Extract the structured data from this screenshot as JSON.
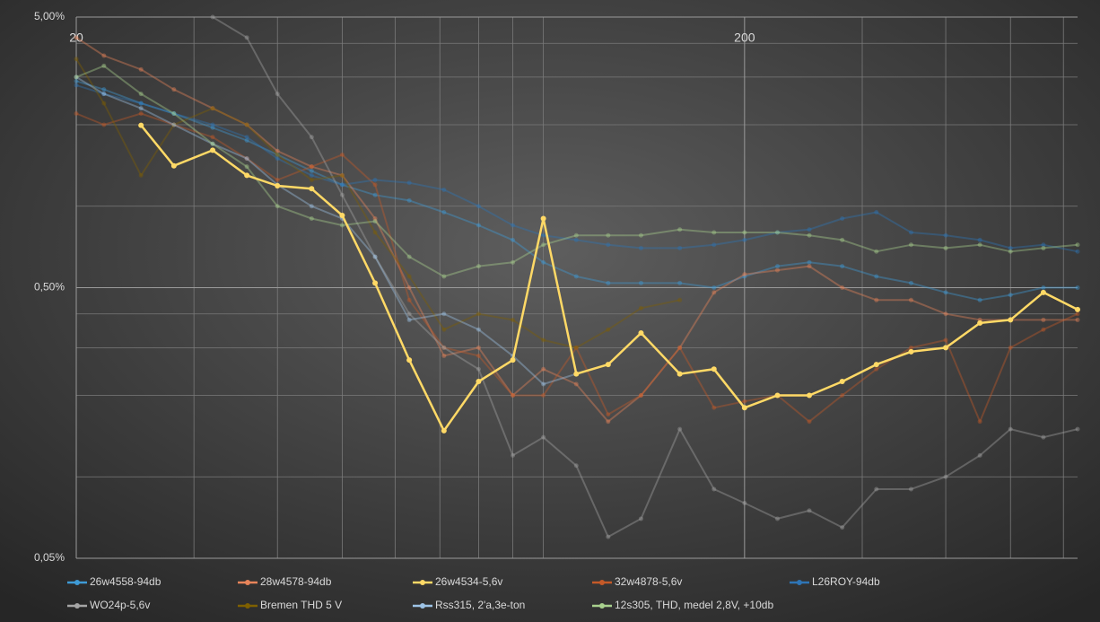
{
  "chart_data": {
    "type": "line",
    "xscale": "log",
    "yscale": "log",
    "grid": true,
    "legend": "bottom",
    "xlim": [
      20,
      630
    ],
    "xticks": [
      20,
      200
    ],
    "x_minor_gridlines": [
      30,
      40,
      50,
      60,
      70,
      80,
      90,
      100,
      300,
      400,
      500,
      600
    ],
    "ylim": [
      0.05,
      5
    ],
    "yticks": [
      {
        "value": 5,
        "label": "5,00%"
      },
      {
        "value": 0.5,
        "label": "0,50%"
      },
      {
        "value": 0.05,
        "label": "0,05%"
      }
    ],
    "y_minor_gridlines": [
      0.1,
      0.2,
      0.3,
      0.4,
      1,
      2,
      3,
      4
    ],
    "x": [
      20,
      22,
      25,
      28,
      32,
      36,
      40,
      45,
      50,
      56,
      63,
      71,
      80,
      90,
      100,
      112,
      125,
      140,
      160,
      180,
      200,
      224,
      250,
      280,
      315,
      355,
      400,
      450,
      500,
      560,
      630
    ],
    "series": [
      {
        "name": "26w4558-94db",
        "color": "#3e9bd6",
        "values": [
          2.9,
          2.7,
          2.4,
          2.2,
          1.95,
          1.75,
          1.55,
          1.35,
          1.2,
          1.1,
          1.05,
          0.95,
          0.85,
          0.75,
          0.62,
          0.55,
          0.52,
          0.52,
          0.52,
          0.5,
          0.55,
          0.6,
          0.62,
          0.6,
          0.55,
          0.52,
          0.48,
          0.45,
          0.47,
          0.5,
          0.5
        ]
      },
      {
        "name": "28w4578-94db",
        "color": "#e8845a",
        "values": [
          4.2,
          3.6,
          3.2,
          2.7,
          2.3,
          2.0,
          1.6,
          1.4,
          1.3,
          0.9,
          0.5,
          0.28,
          0.3,
          0.2,
          0.25,
          0.22,
          0.16,
          0.2,
          0.3,
          0.48,
          0.56,
          0.58,
          0.6,
          0.5,
          0.45,
          0.45,
          0.4,
          0.38,
          0.38,
          0.38,
          0.38
        ]
      },
      {
        "name": "26w4534-5,6v",
        "color": "#ffd966",
        "values": [
          null,
          null,
          1.99,
          1.41,
          1.61,
          1.3,
          1.19,
          1.16,
          0.925,
          0.52,
          0.27,
          0.148,
          0.225,
          0.27,
          0.9,
          0.24,
          0.26,
          0.34,
          0.24,
          0.25,
          0.18,
          0.2,
          0.2,
          0.225,
          0.26,
          0.29,
          0.3,
          0.37,
          0.38,
          0.48,
          0.415
        ]
      },
      {
        "name": "32w4878-5,6v",
        "color": "#c55a28",
        "values": [
          2.2,
          2.0,
          2.2,
          2.0,
          1.8,
          1.5,
          1.25,
          1.4,
          1.55,
          1.2,
          0.45,
          0.3,
          0.28,
          0.2,
          0.2,
          0.3,
          0.17,
          0.2,
          0.3,
          0.18,
          0.19,
          0.2,
          0.16,
          0.2,
          0.25,
          0.3,
          0.32,
          0.16,
          0.3,
          0.35,
          0.4
        ]
      },
      {
        "name": "L26ROY-94db",
        "color": "#2e75b6",
        "values": [
          2.8,
          2.6,
          2.4,
          2.2,
          2.0,
          1.8,
          1.5,
          1.3,
          1.2,
          1.25,
          1.22,
          1.15,
          1.0,
          0.85,
          0.78,
          0.75,
          0.72,
          0.7,
          0.7,
          0.72,
          0.75,
          0.8,
          0.82,
          0.9,
          0.95,
          0.8,
          0.78,
          0.75,
          0.7,
          0.72,
          0.68
        ]
      },
      {
        "name": "WO24p-5,6v",
        "color": "#a5a5a5",
        "values": [
          null,
          null,
          null,
          null,
          5.0,
          4.2,
          2.6,
          1.8,
          1.1,
          0.65,
          0.4,
          0.3,
          0.25,
          0.12,
          0.14,
          0.11,
          0.06,
          0.07,
          0.15,
          0.09,
          0.08,
          0.07,
          0.075,
          0.065,
          0.09,
          0.09,
          0.1,
          0.12,
          0.15,
          0.14,
          0.15
        ]
      },
      {
        "name": "Bremen THD 5 V",
        "color": "#7f6000",
        "values": [
          3.5,
          2.4,
          1.3,
          2.0,
          2.3,
          2.0,
          1.55,
          1.25,
          1.3,
          0.8,
          0.55,
          0.35,
          0.4,
          0.38,
          0.32,
          0.3,
          0.35,
          0.42,
          0.45,
          null,
          null,
          null,
          null,
          null,
          null,
          null,
          null,
          null,
          null,
          null,
          null
        ]
      },
      {
        "name": "Rss315, 2'a,3e-ton",
        "color": "#9dc3e6",
        "values": [
          3.0,
          2.6,
          2.3,
          2.0,
          1.7,
          1.5,
          1.2,
          1.0,
          0.9,
          0.65,
          0.38,
          0.4,
          0.35,
          0.28,
          0.22,
          0.24,
          null,
          null,
          null,
          null,
          null,
          null,
          null,
          null,
          null,
          null,
          null,
          null,
          null,
          null,
          null
        ]
      },
      {
        "name": "12s305, THD, medel 2,8V, +10db",
        "color": "#a9d18e",
        "values": [
          3.0,
          3.3,
          2.6,
          2.2,
          1.7,
          1.4,
          1.0,
          0.9,
          0.85,
          0.88,
          0.65,
          0.55,
          0.6,
          0.62,
          0.72,
          0.78,
          0.78,
          0.78,
          0.82,
          0.8,
          0.8,
          0.8,
          0.78,
          0.75,
          0.68,
          0.72,
          0.7,
          0.72,
          0.68,
          0.7,
          0.72
        ]
      }
    ]
  }
}
